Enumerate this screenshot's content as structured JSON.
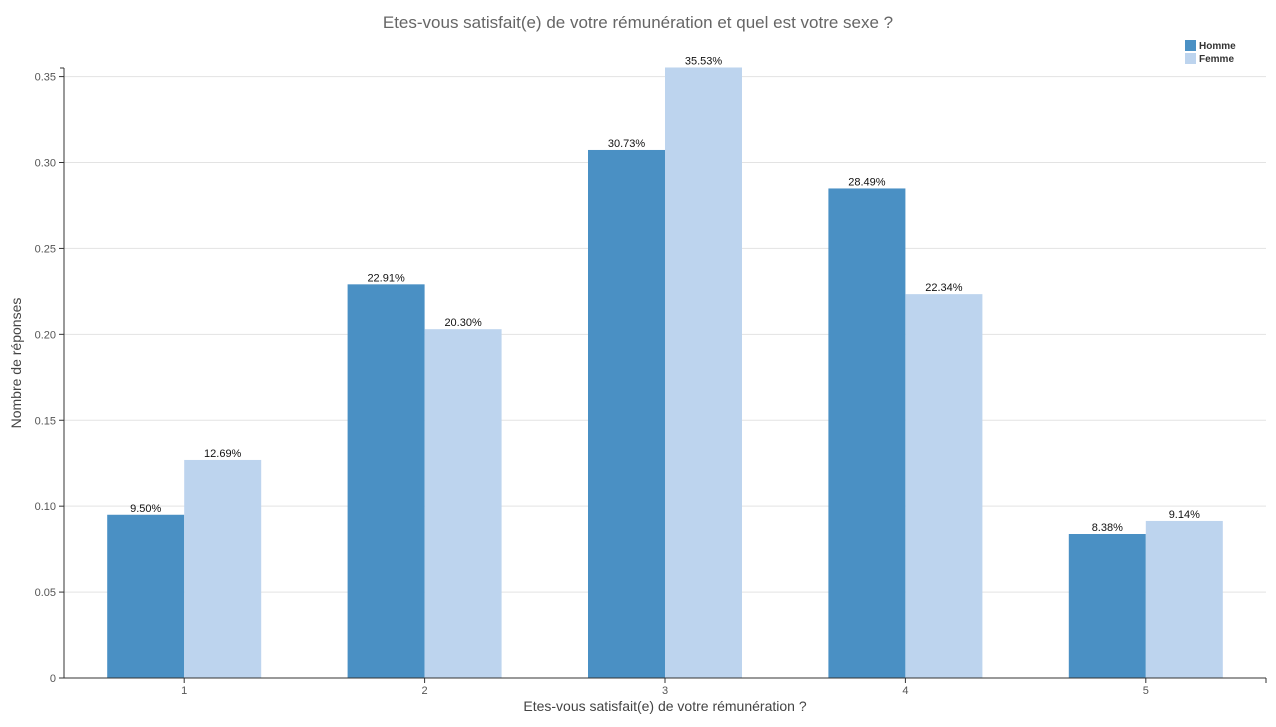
{
  "chart_data": {
    "type": "bar",
    "title": "Etes-vous satisfait(e) de votre rémunération et quel est votre sexe ?",
    "xlabel": "Etes-vous satisfait(e) de votre rémunération ?",
    "ylabel": "Nombre de réponses",
    "categories": [
      "1",
      "2",
      "3",
      "4",
      "5"
    ],
    "ylim": [
      0,
      0.355
    ],
    "yticks": [
      "0",
      "0.05",
      "0.10",
      "0.15",
      "0.20",
      "0.25",
      "0.30",
      "0.35"
    ],
    "ytick_values": [
      0,
      0.05,
      0.1,
      0.15,
      0.2,
      0.25,
      0.3,
      0.35
    ],
    "grid": true,
    "legend_position": "top-right",
    "series": [
      {
        "name": "Homme",
        "color": "#4a90c4",
        "values": [
          0.095,
          0.2291,
          0.3073,
          0.2849,
          0.0838
        ],
        "labels": [
          "9.50%",
          "22.91%",
          "30.73%",
          "28.49%",
          "8.38%"
        ]
      },
      {
        "name": "Femme",
        "color": "#bdd4ee",
        "values": [
          0.1269,
          0.203,
          0.3553,
          0.2234,
          0.0914
        ],
        "labels": [
          "12.69%",
          "20.30%",
          "35.53%",
          "22.34%",
          "9.14%"
        ]
      }
    ]
  }
}
